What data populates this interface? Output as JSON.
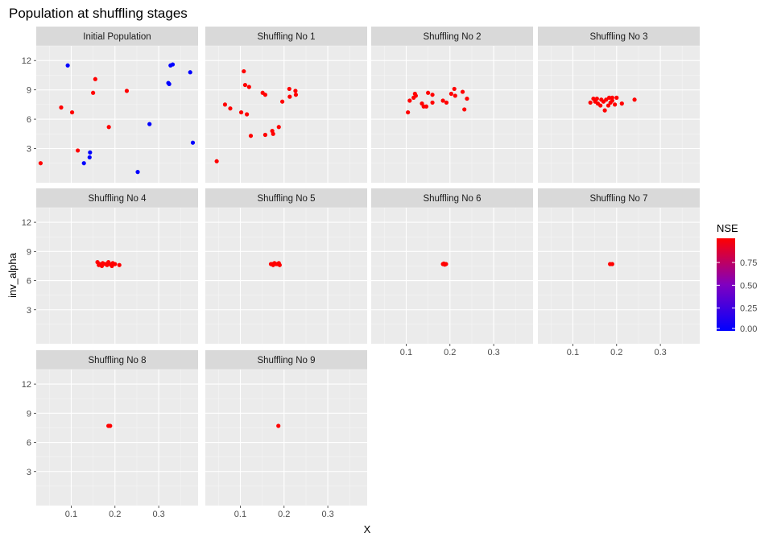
{
  "chart_data": {
    "type": "scatter",
    "title": "Population at shuffling stages",
    "xlabel": "X",
    "ylabel": "inv_alpha",
    "xlim": [
      0.02,
      0.39
    ],
    "ylim": [
      -0.5,
      13.5
    ],
    "xticks": [
      0.1,
      0.2,
      0.3
    ],
    "xtick_labels": [
      "0.1",
      "0.2",
      "0.3"
    ],
    "yticks": [
      3,
      6,
      9,
      12
    ],
    "ytick_labels": [
      "3",
      "6",
      "9",
      "12"
    ],
    "grid": true,
    "color_scale": {
      "name": "NSE",
      "low_color": "#0000ff",
      "mid_color": "#8000c0",
      "high_color": "#ff0000",
      "range": [
        0,
        1
      ],
      "breaks": [
        0.0,
        0.25,
        0.5,
        0.75
      ],
      "break_labels": [
        "0.00",
        "0.25",
        "0.50",
        "0.75"
      ],
      "legend_position": "right"
    },
    "facets": [
      {
        "label": "Initial Population",
        "points": [
          {
            "x": 0.092,
            "y": 11.5,
            "nse": 0.0
          },
          {
            "x": 0.327,
            "y": 11.5,
            "nse": 0.0
          },
          {
            "x": 0.332,
            "y": 11.6,
            "nse": 0.0
          },
          {
            "x": 0.372,
            "y": 10.8,
            "nse": 0.0
          },
          {
            "x": 0.155,
            "y": 10.1,
            "nse": 1.0
          },
          {
            "x": 0.322,
            "y": 9.7,
            "nse": 0.0
          },
          {
            "x": 0.324,
            "y": 9.6,
            "nse": 0.0
          },
          {
            "x": 0.227,
            "y": 8.9,
            "nse": 1.0
          },
          {
            "x": 0.15,
            "y": 8.7,
            "nse": 1.0
          },
          {
            "x": 0.077,
            "y": 7.2,
            "nse": 1.0
          },
          {
            "x": 0.102,
            "y": 6.7,
            "nse": 1.0
          },
          {
            "x": 0.279,
            "y": 5.5,
            "nse": 0.0
          },
          {
            "x": 0.186,
            "y": 5.2,
            "nse": 1.0
          },
          {
            "x": 0.378,
            "y": 3.6,
            "nse": 0.0
          },
          {
            "x": 0.115,
            "y": 2.8,
            "nse": 1.0
          },
          {
            "x": 0.143,
            "y": 2.6,
            "nse": 0.0
          },
          {
            "x": 0.142,
            "y": 2.1,
            "nse": 0.0
          },
          {
            "x": 0.129,
            "y": 1.5,
            "nse": 0.0
          },
          {
            "x": 0.03,
            "y": 1.5,
            "nse": 1.0
          },
          {
            "x": 0.252,
            "y": 0.6,
            "nse": 0.0
          }
        ]
      },
      {
        "label": "Shuffling No 1",
        "points": [
          {
            "x": 0.108,
            "y": 10.9,
            "nse": 1.0
          },
          {
            "x": 0.111,
            "y": 9.5,
            "nse": 1.0
          },
          {
            "x": 0.12,
            "y": 9.3,
            "nse": 1.0
          },
          {
            "x": 0.212,
            "y": 9.1,
            "nse": 1.0
          },
          {
            "x": 0.226,
            "y": 8.9,
            "nse": 1.0
          },
          {
            "x": 0.151,
            "y": 8.7,
            "nse": 1.0
          },
          {
            "x": 0.157,
            "y": 8.5,
            "nse": 1.0
          },
          {
            "x": 0.227,
            "y": 8.5,
            "nse": 1.0
          },
          {
            "x": 0.213,
            "y": 8.3,
            "nse": 1.0
          },
          {
            "x": 0.196,
            "y": 7.8,
            "nse": 1.0
          },
          {
            "x": 0.065,
            "y": 7.5,
            "nse": 1.0
          },
          {
            "x": 0.077,
            "y": 7.1,
            "nse": 1.0
          },
          {
            "x": 0.102,
            "y": 6.7,
            "nse": 1.0
          },
          {
            "x": 0.115,
            "y": 6.5,
            "nse": 1.0
          },
          {
            "x": 0.188,
            "y": 5.2,
            "nse": 1.0
          },
          {
            "x": 0.173,
            "y": 4.8,
            "nse": 1.0
          },
          {
            "x": 0.175,
            "y": 4.5,
            "nse": 1.0
          },
          {
            "x": 0.157,
            "y": 4.4,
            "nse": 1.0
          },
          {
            "x": 0.124,
            "y": 4.3,
            "nse": 1.0
          },
          {
            "x": 0.046,
            "y": 1.7,
            "nse": 1.0
          }
        ]
      },
      {
        "label": "Shuffling No 2",
        "points": [
          {
            "x": 0.21,
            "y": 9.1,
            "nse": 1.0
          },
          {
            "x": 0.229,
            "y": 8.8,
            "nse": 1.0
          },
          {
            "x": 0.15,
            "y": 8.7,
            "nse": 1.0
          },
          {
            "x": 0.12,
            "y": 8.6,
            "nse": 1.0
          },
          {
            "x": 0.203,
            "y": 8.6,
            "nse": 1.0
          },
          {
            "x": 0.16,
            "y": 8.5,
            "nse": 1.0
          },
          {
            "x": 0.122,
            "y": 8.4,
            "nse": 1.0
          },
          {
            "x": 0.212,
            "y": 8.4,
            "nse": 1.0
          },
          {
            "x": 0.117,
            "y": 8.2,
            "nse": 1.0
          },
          {
            "x": 0.239,
            "y": 8.1,
            "nse": 1.0
          },
          {
            "x": 0.108,
            "y": 7.9,
            "nse": 1.0
          },
          {
            "x": 0.184,
            "y": 7.9,
            "nse": 1.0
          },
          {
            "x": 0.192,
            "y": 7.7,
            "nse": 1.0
          },
          {
            "x": 0.16,
            "y": 7.7,
            "nse": 1.0
          },
          {
            "x": 0.136,
            "y": 7.6,
            "nse": 1.0
          },
          {
            "x": 0.14,
            "y": 7.3,
            "nse": 1.0
          },
          {
            "x": 0.146,
            "y": 7.3,
            "nse": 1.0
          },
          {
            "x": 0.233,
            "y": 7.0,
            "nse": 1.0
          },
          {
            "x": 0.104,
            "y": 6.7,
            "nse": 1.0
          }
        ]
      },
      {
        "label": "Shuffling No 3",
        "points": [
          {
            "x": 0.147,
            "y": 8.1,
            "nse": 1.0
          },
          {
            "x": 0.155,
            "y": 8.1,
            "nse": 1.0
          },
          {
            "x": 0.183,
            "y": 8.2,
            "nse": 1.0
          },
          {
            "x": 0.2,
            "y": 8.2,
            "nse": 1.0
          },
          {
            "x": 0.19,
            "y": 8.2,
            "nse": 1.0
          },
          {
            "x": 0.241,
            "y": 8.0,
            "nse": 1.0
          },
          {
            "x": 0.176,
            "y": 8.0,
            "nse": 1.0
          },
          {
            "x": 0.165,
            "y": 8.0,
            "nse": 1.0
          },
          {
            "x": 0.19,
            "y": 7.9,
            "nse": 1.0
          },
          {
            "x": 0.17,
            "y": 7.8,
            "nse": 1.0
          },
          {
            "x": 0.151,
            "y": 7.8,
            "nse": 1.0
          },
          {
            "x": 0.14,
            "y": 7.7,
            "nse": 1.0
          },
          {
            "x": 0.186,
            "y": 7.7,
            "nse": 1.0
          },
          {
            "x": 0.212,
            "y": 7.6,
            "nse": 1.0
          },
          {
            "x": 0.157,
            "y": 7.6,
            "nse": 1.0
          },
          {
            "x": 0.196,
            "y": 7.5,
            "nse": 1.0
          },
          {
            "x": 0.163,
            "y": 7.4,
            "nse": 1.0
          },
          {
            "x": 0.181,
            "y": 7.4,
            "nse": 1.0
          },
          {
            "x": 0.173,
            "y": 6.9,
            "nse": 1.0
          }
        ]
      },
      {
        "label": "Shuffling No 4",
        "points": [
          {
            "x": 0.16,
            "y": 7.9,
            "nse": 1.0
          },
          {
            "x": 0.185,
            "y": 7.9,
            "nse": 1.0
          },
          {
            "x": 0.172,
            "y": 7.8,
            "nse": 1.0
          },
          {
            "x": 0.195,
            "y": 7.8,
            "nse": 1.0
          },
          {
            "x": 0.165,
            "y": 7.7,
            "nse": 1.0
          },
          {
            "x": 0.178,
            "y": 7.7,
            "nse": 1.0
          },
          {
            "x": 0.188,
            "y": 7.7,
            "nse": 1.0
          },
          {
            "x": 0.2,
            "y": 7.7,
            "nse": 1.0
          },
          {
            "x": 0.21,
            "y": 7.6,
            "nse": 1.0
          },
          {
            "x": 0.163,
            "y": 7.6,
            "nse": 1.0
          },
          {
            "x": 0.182,
            "y": 7.6,
            "nse": 1.0
          },
          {
            "x": 0.193,
            "y": 7.5,
            "nse": 1.0
          },
          {
            "x": 0.17,
            "y": 7.5,
            "nse": 1.0
          }
        ]
      },
      {
        "label": "Shuffling No 5",
        "points": [
          {
            "x": 0.17,
            "y": 7.7,
            "nse": 1.0
          },
          {
            "x": 0.178,
            "y": 7.8,
            "nse": 1.0
          },
          {
            "x": 0.185,
            "y": 7.7,
            "nse": 1.0
          },
          {
            "x": 0.19,
            "y": 7.6,
            "nse": 1.0
          },
          {
            "x": 0.175,
            "y": 7.6,
            "nse": 1.0
          },
          {
            "x": 0.182,
            "y": 7.7,
            "nse": 1.0
          },
          {
            "x": 0.188,
            "y": 7.8,
            "nse": 1.0
          },
          {
            "x": 0.173,
            "y": 7.7,
            "nse": 1.0
          }
        ]
      },
      {
        "label": "Shuffling No 6",
        "points": [
          {
            "x": 0.184,
            "y": 7.7,
            "nse": 1.0
          },
          {
            "x": 0.188,
            "y": 7.65,
            "nse": 1.0
          },
          {
            "x": 0.191,
            "y": 7.7,
            "nse": 1.0
          },
          {
            "x": 0.186,
            "y": 7.75,
            "nse": 1.0
          }
        ]
      },
      {
        "label": "Shuffling No 7",
        "points": [
          {
            "x": 0.185,
            "y": 7.7,
            "nse": 1.0
          },
          {
            "x": 0.19,
            "y": 7.7,
            "nse": 1.0
          }
        ]
      },
      {
        "label": "Shuffling No 8",
        "points": [
          {
            "x": 0.185,
            "y": 7.7,
            "nse": 1.0
          },
          {
            "x": 0.189,
            "y": 7.7,
            "nse": 1.0
          }
        ]
      },
      {
        "label": "Shuffling No 9",
        "points": [
          {
            "x": 0.187,
            "y": 7.7,
            "nse": 1.0
          }
        ]
      }
    ]
  }
}
